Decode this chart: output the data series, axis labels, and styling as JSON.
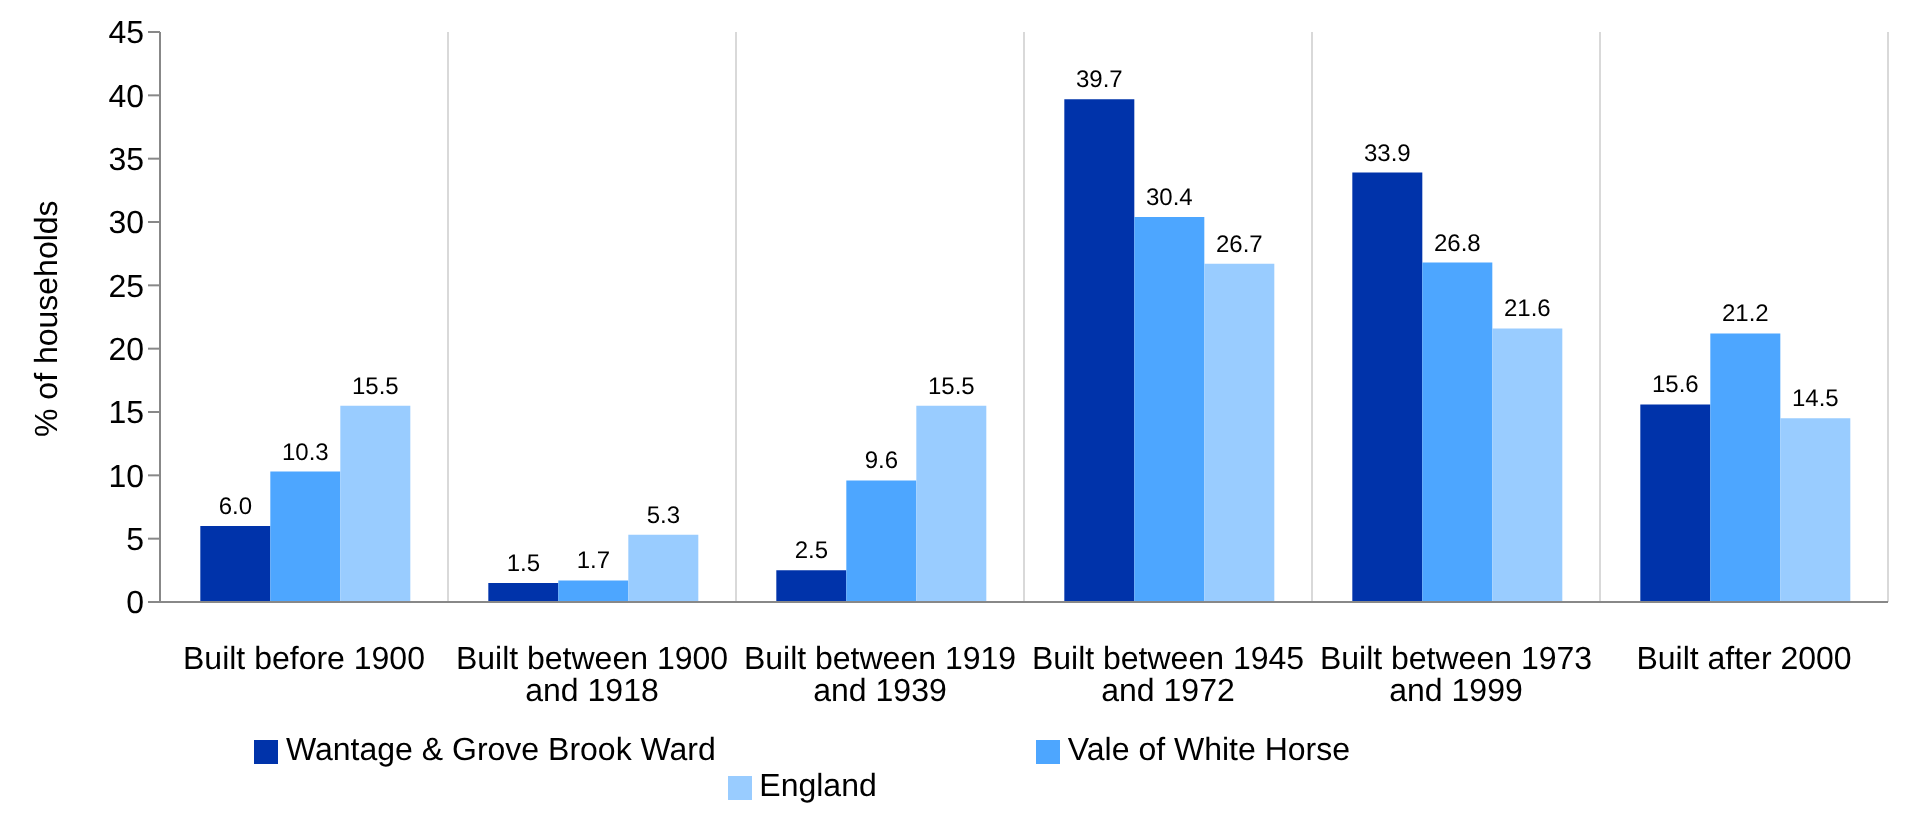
{
  "chart_data": {
    "type": "bar",
    "ylabel": "% of households",
    "categories": [
      "Built before 1900",
      "Built between 1900 and 1918",
      "Built between 1919 and 1939",
      "Built between 1945 and 1972",
      "Built between 1973 and 1999",
      "Built after 2000"
    ],
    "series": [
      {
        "name": "Wantage & Grove Brook Ward",
        "color": "#0033aa",
        "values": [
          6.0,
          1.5,
          2.5,
          39.7,
          33.9,
          15.6
        ],
        "value_labels": [
          "6.0",
          "1.5",
          "2.5",
          "39.7",
          "33.9",
          "15.6"
        ]
      },
      {
        "name": "Vale of White Horse",
        "color": "#4da6ff",
        "values": [
          10.3,
          1.7,
          9.6,
          30.4,
          26.8,
          21.2
        ],
        "value_labels": [
          "10.3",
          "1.7",
          "9.6",
          "30.4",
          "26.8",
          "21.2"
        ]
      },
      {
        "name": "England",
        "color": "#99ccff",
        "values": [
          15.5,
          5.3,
          15.5,
          26.7,
          21.6,
          14.5
        ],
        "value_labels": [
          "15.5",
          "5.3",
          "15.5",
          "26.7",
          "21.6",
          "14.5"
        ]
      }
    ],
    "ylim": [
      0,
      45
    ],
    "yticks": [
      0,
      5,
      10,
      15,
      20,
      25,
      30,
      35,
      40,
      45
    ],
    "grid": "x",
    "legend": "bottom"
  }
}
